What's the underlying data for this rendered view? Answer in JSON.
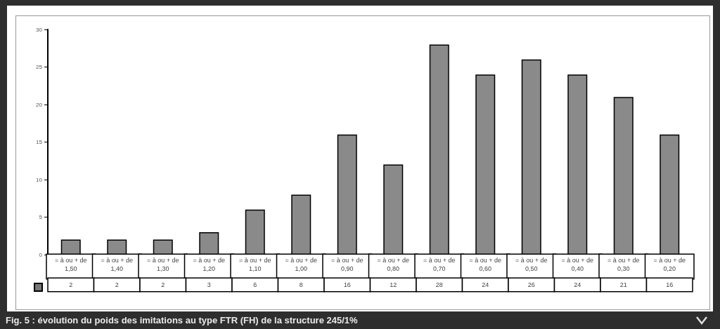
{
  "chart_data": {
    "type": "bar",
    "title": "Fig. 5 : évolution du poids des imitations au type FTR (FH) de la structure 245/1%",
    "categories": [
      "= à ou + de 1,50",
      "= à ou + de 1,40",
      "= à ou + de 1,30",
      "= à ou + de 1,20",
      "= à ou + de 1,10",
      "= à ou + de 1,00",
      "= à ou + de 0,90",
      "= à ou + de 0,80",
      "= à ou + de 0,70",
      "= à ou + de 0,60",
      "= à ou + de 0,50",
      "= à ou + de 0,40",
      "= à ou + de 0,30",
      "= à ou + de 0,20"
    ],
    "values": [
      2,
      2,
      2,
      3,
      6,
      8,
      16,
      12,
      28,
      24,
      26,
      24,
      21,
      16
    ],
    "color": "#8a8a8a",
    "ylim": [
      0,
      30
    ],
    "yticks": [
      0,
      5,
      10,
      15,
      20,
      25,
      30
    ],
    "grid": false,
    "data_labels": true
  }
}
